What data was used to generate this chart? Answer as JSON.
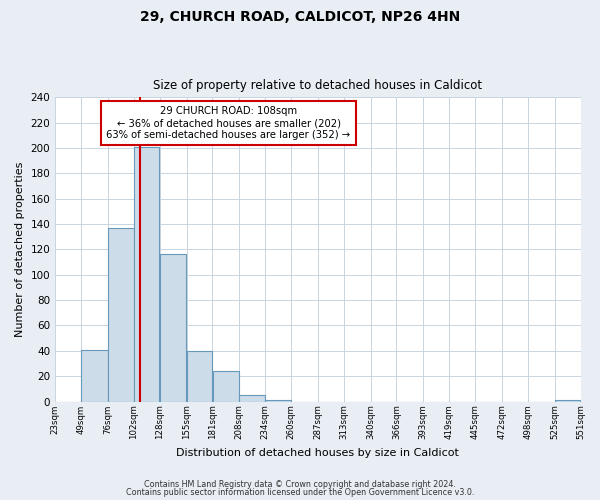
{
  "title1": "29, CHURCH ROAD, CALDICOT, NP26 4HN",
  "title2": "Size of property relative to detached houses in Caldicot",
  "xlabel": "Distribution of detached houses by size in Caldicot",
  "ylabel": "Number of detached properties",
  "bar_edges": [
    23,
    49,
    76,
    102,
    128,
    155,
    181,
    208,
    234,
    260,
    287,
    313,
    340,
    366,
    393,
    419,
    445,
    472,
    498,
    525,
    551
  ],
  "bar_heights": [
    0,
    41,
    137,
    201,
    116,
    40,
    24,
    5,
    1,
    0,
    0,
    0,
    0,
    0,
    0,
    0,
    0,
    0,
    0,
    1,
    0
  ],
  "bar_color": "#ccdce8",
  "bar_edge_color": "#6699bb",
  "vline_x": 108,
  "vline_color": "#cc0000",
  "annotation_title": "29 CHURCH ROAD: 108sqm",
  "annotation_line1": "← 36% of detached houses are smaller (202)",
  "annotation_line2": "63% of semi-detached houses are larger (352) →",
  "annotation_box_color": "#ffffff",
  "annotation_box_edge_color": "#cc0000",
  "ylim": [
    0,
    240
  ],
  "yticks": [
    0,
    20,
    40,
    60,
    80,
    100,
    120,
    140,
    160,
    180,
    200,
    220,
    240
  ],
  "xtick_labels": [
    "23sqm",
    "49sqm",
    "76sqm",
    "102sqm",
    "128sqm",
    "155sqm",
    "181sqm",
    "208sqm",
    "234sqm",
    "260sqm",
    "287sqm",
    "313sqm",
    "340sqm",
    "366sqm",
    "393sqm",
    "419sqm",
    "445sqm",
    "472sqm",
    "498sqm",
    "525sqm",
    "551sqm"
  ],
  "footer1": "Contains HM Land Registry data © Crown copyright and database right 2024.",
  "footer2": "Contains public sector information licensed under the Open Government Licence v3.0.",
  "bg_color": "#e8eef4",
  "plot_bg_color": "#ffffff",
  "grid_color": "#c8d4de"
}
